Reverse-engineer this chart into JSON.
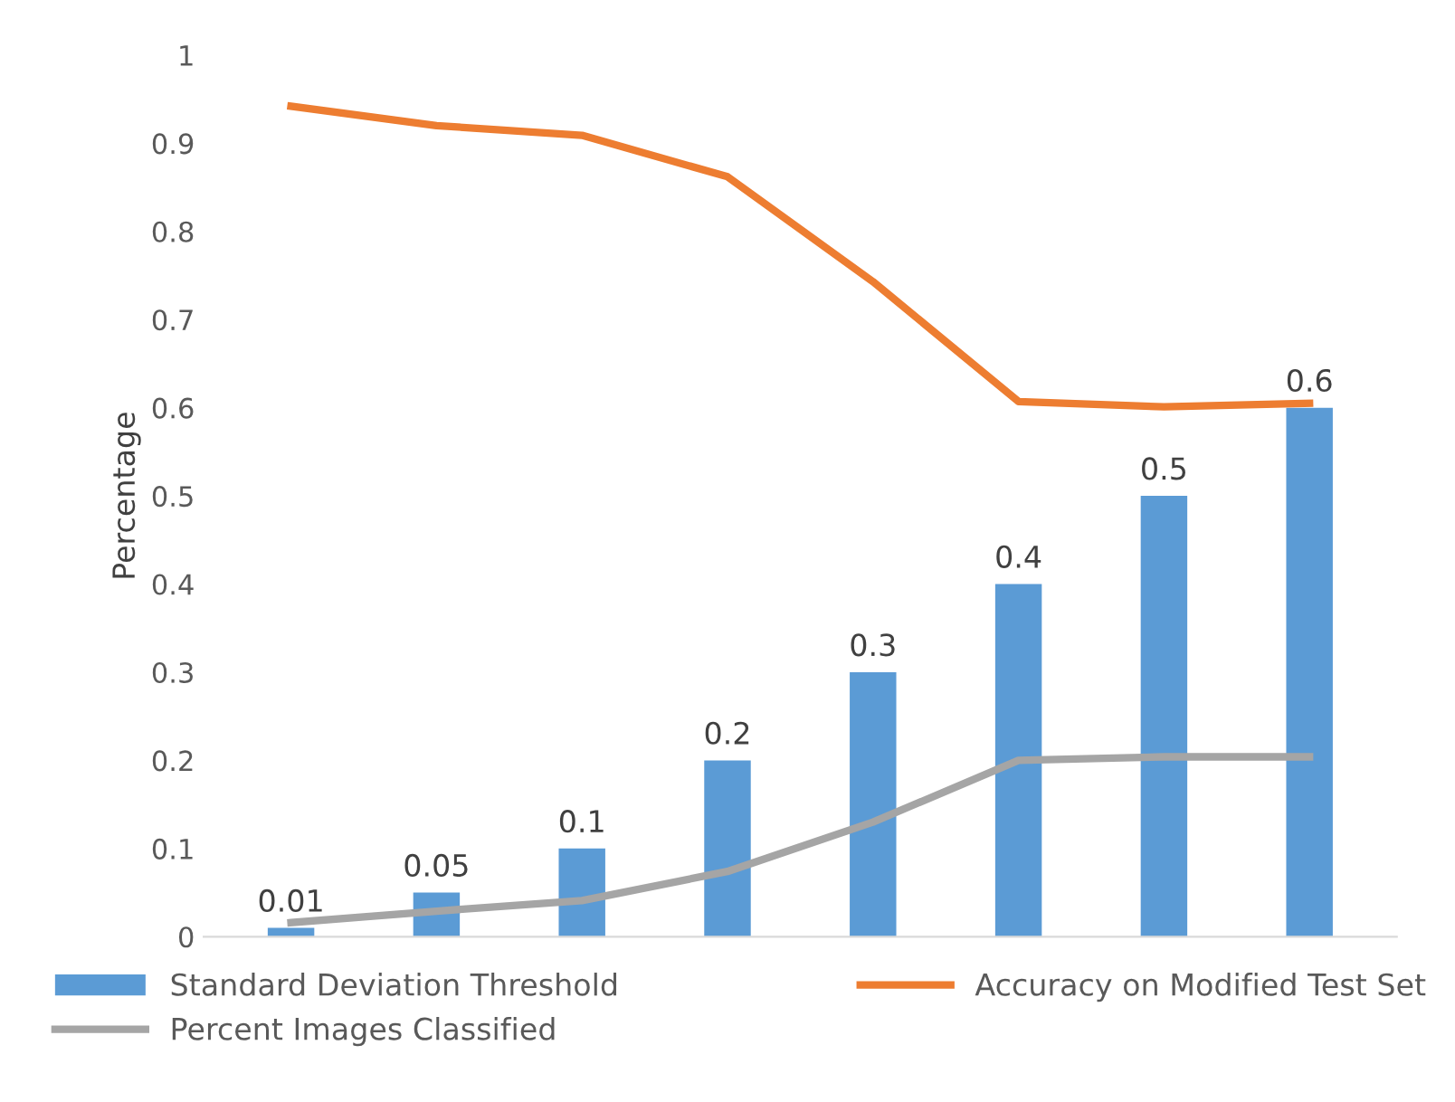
{
  "chart_data": {
    "type": "bar",
    "ylabel": "Percentage",
    "categories": [
      null,
      null,
      null,
      null,
      null,
      null,
      null,
      null
    ],
    "series": [
      {
        "name": "Standard Deviation Threshold",
        "color": "#5b9bd5",
        "values": [
          0.01,
          0.05,
          0.1,
          0.2,
          0.3,
          0.4,
          0.5,
          0.6
        ],
        "value_labels": [
          "0.01",
          "0.05",
          "0.1",
          "0.2",
          "0.3",
          "0.4",
          "0.5",
          "0.6"
        ]
      },
      {
        "name": "Accuracy on Modified Test Set",
        "type": "line",
        "color": "#ed7d31",
        "values": [
          0.942,
          0.92,
          0.909,
          0.862,
          0.743,
          0.607,
          0.601,
          0.605
        ]
      },
      {
        "name": "Percent Images Classified",
        "type": "line",
        "color": "#a5a5a5",
        "values": [
          0.016,
          0.029,
          0.041,
          0.074,
          0.13,
          0.2,
          0.204,
          0.204
        ]
      }
    ],
    "ylim": [
      0,
      1
    ],
    "yticks": [
      0,
      0.1,
      0.2,
      0.3,
      0.4,
      0.5,
      0.6,
      0.7,
      0.8,
      0.9,
      1
    ],
    "grid": false,
    "legend": "bottom",
    "marker": "none",
    "line_style": "solid"
  }
}
